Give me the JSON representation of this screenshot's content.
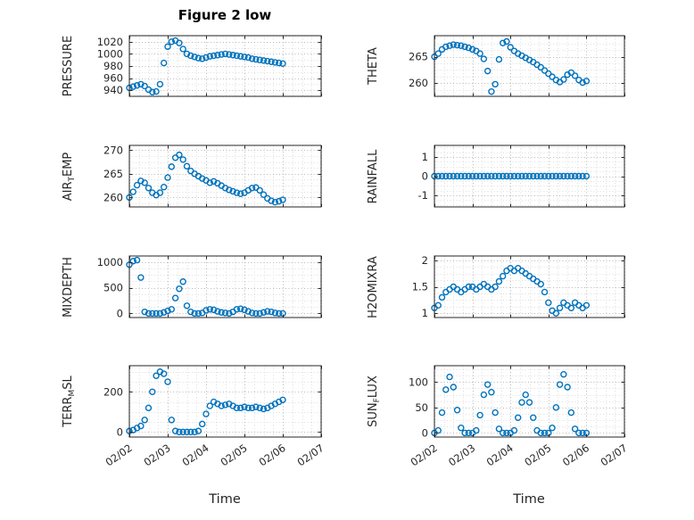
{
  "figure": {
    "title": "Figure 2 low",
    "xlabel": "Time",
    "marker": "circle-open",
    "marker_color": "#0072BD",
    "axis_color": "#262626",
    "grid_color": "#b8b8b8",
    "minor_grid_color": "#dedede"
  },
  "chart_data": [
    {
      "type": "scatter",
      "name": "pressure",
      "label": "PRESSURE",
      "ylabel_parts": [
        {
          "text": "PRESSURE"
        }
      ],
      "xlim": [
        0,
        5
      ],
      "ylim": [
        930,
        1030
      ],
      "yticks": [
        940,
        960,
        980,
        1000,
        1020
      ],
      "xticks": [
        0,
        1,
        2,
        3,
        4,
        5
      ],
      "xtick_labels": [
        "02/02",
        "02/03",
        "02/04",
        "02/05",
        "02/06",
        "02/07"
      ],
      "show_xtick_labels": false,
      "x0": 0,
      "dx": 0.1,
      "y": [
        944,
        946,
        948,
        950,
        947,
        941,
        937,
        938,
        950,
        985,
        1012,
        1020,
        1022,
        1018,
        1008,
        1000,
        997,
        995,
        993,
        992,
        994,
        996,
        997,
        998,
        999,
        1000,
        999,
        998,
        997,
        996,
        995,
        994,
        992,
        991,
        990,
        989,
        988,
        987,
        986,
        985,
        984
      ]
    },
    {
      "type": "scatter",
      "name": "theta",
      "label": "THETA",
      "ylabel_parts": [
        {
          "text": "THETA"
        }
      ],
      "xlim": [
        0,
        5
      ],
      "ylim": [
        257.5,
        269
      ],
      "yticks": [
        260,
        265
      ],
      "xticks": [
        0,
        1,
        2,
        3,
        4,
        5
      ],
      "xtick_labels": [
        "02/02",
        "02/03",
        "02/04",
        "02/05",
        "02/06",
        "02/07"
      ],
      "show_xtick_labels": false,
      "x0": 0,
      "dx": 0.1,
      "y": [
        265,
        265.6,
        266.4,
        266.9,
        267.1,
        267.3,
        267.2,
        267.1,
        266.9,
        266.7,
        266.4,
        266.1,
        265.6,
        264.6,
        262.3,
        258.4,
        259.8,
        264.5,
        267.6,
        267.9,
        266.8,
        266.1,
        265.6,
        265.2,
        264.8,
        264.4,
        264,
        263.5,
        263,
        262.4,
        261.8,
        261.2,
        260.6,
        260.2,
        260.7,
        261.6,
        262,
        261.4,
        260.6,
        260.1,
        260.4
      ]
    },
    {
      "type": "scatter",
      "name": "air_temp",
      "label": "AIR_TEMP",
      "ylabel_parts": [
        {
          "text": "AIR"
        },
        {
          "text": "T",
          "sub": true
        },
        {
          "text": "EMP"
        }
      ],
      "xlim": [
        0,
        5
      ],
      "ylim": [
        258,
        271
      ],
      "yticks": [
        260,
        265,
        270
      ],
      "xticks": [
        0,
        1,
        2,
        3,
        4,
        5
      ],
      "xtick_labels": [
        "02/02",
        "02/03",
        "02/04",
        "02/05",
        "02/06",
        "02/07"
      ],
      "show_xtick_labels": false,
      "x0": 0,
      "dx": 0.1,
      "y": [
        260,
        261.2,
        262.6,
        263.5,
        263.1,
        262,
        261,
        260.5,
        261,
        262.2,
        264.2,
        266.5,
        268.4,
        269,
        268,
        266.6,
        265.6,
        265,
        264.5,
        264,
        263.6,
        263.1,
        263.4,
        263,
        262.5,
        262,
        261.6,
        261.3,
        261,
        260.8,
        261,
        261.5,
        262,
        262.1,
        261.5,
        260.6,
        259.8,
        259.3,
        259,
        259.2,
        259.5
      ]
    },
    {
      "type": "scatter",
      "name": "rainfall",
      "label": "RAINFALL",
      "ylabel_parts": [
        {
          "text": "RAINFALL"
        }
      ],
      "xlim": [
        0,
        5
      ],
      "ylim": [
        -1.6,
        1.6
      ],
      "yticks": [
        -1,
        0,
        1
      ],
      "xticks": [
        0,
        1,
        2,
        3,
        4,
        5
      ],
      "xtick_labels": [
        "02/02",
        "02/03",
        "02/04",
        "02/05",
        "02/06",
        "02/07"
      ],
      "show_xtick_labels": false,
      "x0": 0,
      "dx": 0.1,
      "y": [
        0,
        0,
        0,
        0,
        0,
        0,
        0,
        0,
        0,
        0,
        0,
        0,
        0,
        0,
        0,
        0,
        0,
        0,
        0,
        0,
        0,
        0,
        0,
        0,
        0,
        0,
        0,
        0,
        0,
        0,
        0,
        0,
        0,
        0,
        0,
        0,
        0,
        0,
        0,
        0,
        0
      ]
    },
    {
      "type": "scatter",
      "name": "mixdepth",
      "label": "MIXDEPTH",
      "ylabel_parts": [
        {
          "text": "MIXDEPTH"
        }
      ],
      "xlim": [
        0,
        5
      ],
      "ylim": [
        -80,
        1120
      ],
      "yticks": [
        0,
        500,
        1000
      ],
      "xticks": [
        0,
        1,
        2,
        3,
        4,
        5
      ],
      "xtick_labels": [
        "02/02",
        "02/03",
        "02/04",
        "02/05",
        "02/06",
        "02/07"
      ],
      "show_xtick_labels": false,
      "x0": 0,
      "dx": 0.1,
      "y": [
        950,
        1020,
        1040,
        700,
        30,
        0,
        0,
        0,
        0,
        20,
        50,
        80,
        300,
        480,
        620,
        150,
        30,
        0,
        0,
        10,
        60,
        80,
        70,
        40,
        20,
        10,
        0,
        30,
        80,
        90,
        70,
        40,
        10,
        0,
        0,
        20,
        40,
        30,
        10,
        0,
        0
      ]
    },
    {
      "type": "scatter",
      "name": "h2omixra",
      "label": "H2OMIXRA",
      "ylabel_parts": [
        {
          "text": "H2OMIXRA"
        }
      ],
      "xlim": [
        0,
        5
      ],
      "ylim": [
        0.92,
        2.08
      ],
      "yticks": [
        1,
        1.5,
        2
      ],
      "xticks": [
        0,
        1,
        2,
        3,
        4,
        5
      ],
      "xtick_labels": [
        "02/02",
        "02/03",
        "02/04",
        "02/05",
        "02/06",
        "02/07"
      ],
      "show_xtick_labels": false,
      "x0": 0,
      "dx": 0.1,
      "y": [
        1.1,
        1.15,
        1.3,
        1.4,
        1.45,
        1.5,
        1.45,
        1.4,
        1.45,
        1.5,
        1.5,
        1.45,
        1.5,
        1.55,
        1.5,
        1.45,
        1.5,
        1.6,
        1.7,
        1.8,
        1.85,
        1.8,
        1.85,
        1.8,
        1.75,
        1.7,
        1.65,
        1.6,
        1.55,
        1.4,
        1.2,
        1.05,
        1.0,
        1.1,
        1.2,
        1.15,
        1.1,
        1.2,
        1.15,
        1.1,
        1.15
      ]
    },
    {
      "type": "scatter",
      "name": "terr_msl",
      "label": "TERR_MSL",
      "ylabel_parts": [
        {
          "text": "TERR"
        },
        {
          "text": "M",
          "sub": true
        },
        {
          "text": "SL"
        }
      ],
      "xlim": [
        0,
        5
      ],
      "ylim": [
        -25,
        330
      ],
      "yticks": [
        0,
        200
      ],
      "xticks": [
        0,
        1,
        2,
        3,
        4,
        5
      ],
      "xtick_labels": [
        "02/02",
        "02/03",
        "02/04",
        "02/05",
        "02/06",
        "02/07"
      ],
      "show_xtick_labels": true,
      "x0": 0,
      "dx": 0.1,
      "y": [
        5,
        10,
        20,
        30,
        60,
        120,
        200,
        280,
        300,
        290,
        250,
        60,
        5,
        0,
        0,
        0,
        0,
        0,
        5,
        40,
        90,
        130,
        150,
        140,
        130,
        135,
        140,
        130,
        120,
        120,
        125,
        120,
        120,
        125,
        120,
        115,
        120,
        130,
        140,
        150,
        160
      ]
    },
    {
      "type": "scatter",
      "name": "sun_flux",
      "label": "SUN_FLUX",
      "ylabel_parts": [
        {
          "text": "SUN"
        },
        {
          "text": "F",
          "sub": true
        },
        {
          "text": "LUX"
        }
      ],
      "xlim": [
        0,
        5
      ],
      "ylim": [
        -8,
        132
      ],
      "yticks": [
        0,
        50,
        100
      ],
      "xticks": [
        0,
        1,
        2,
        3,
        4,
        5
      ],
      "xtick_labels": [
        "02/02",
        "02/03",
        "02/04",
        "02/05",
        "02/06",
        "02/07"
      ],
      "show_xtick_labels": true,
      "x0": 0,
      "dx": 0.1,
      "y": [
        0,
        5,
        40,
        85,
        110,
        90,
        45,
        10,
        0,
        0,
        0,
        5,
        35,
        75,
        95,
        80,
        40,
        8,
        0,
        0,
        0,
        5,
        30,
        60,
        75,
        60,
        30,
        5,
        0,
        0,
        0,
        10,
        50,
        95,
        115,
        90,
        40,
        8,
        0,
        0,
        0
      ]
    }
  ]
}
